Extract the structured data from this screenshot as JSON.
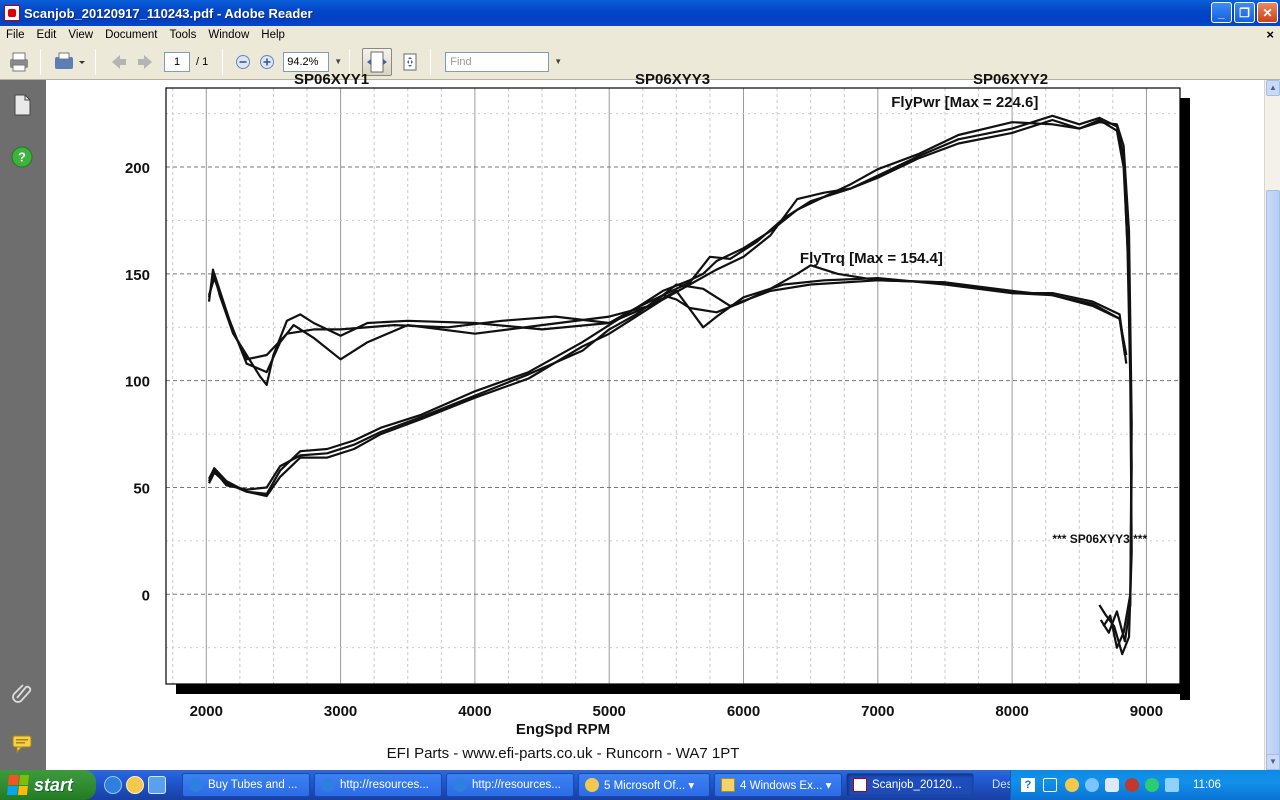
{
  "window": {
    "title": "Scanjob_20120917_110243.pdf - Adobe Reader",
    "minimize_label": "_",
    "maximize_label": "❐",
    "close_label": "✕"
  },
  "menu": {
    "items": [
      "File",
      "Edit",
      "View",
      "Document",
      "Tools",
      "Window",
      "Help"
    ],
    "close_doc": "×"
  },
  "toolbar": {
    "page_current": "1",
    "page_total": "/ 1",
    "zoom": "94.2%",
    "find_placeholder": "Find"
  },
  "colors": {
    "accent": "#245edb",
    "nav_panel": "#6e6e6e"
  },
  "chart_data": {
    "type": "line",
    "xlabel": "EngSpd RPM",
    "ylabel": "",
    "x_ticks": [
      2000,
      3000,
      4000,
      5000,
      6000,
      7000,
      8000,
      9000
    ],
    "y_ticks": [
      0,
      50,
      100,
      150,
      200
    ],
    "xlim": [
      1700,
      9250
    ],
    "ylim": [
      -42,
      237
    ],
    "grid": true,
    "header_labels": [
      "SP06XYY1",
      "SP06XYY3",
      "SP06XYY2"
    ],
    "footer": "EFI Parts - www.efi-parts.co.uk - Runcorn - WA7 1PT",
    "annotations": [
      {
        "text": "FlyPwr [Max = 224.6]",
        "x": 7100,
        "y": 228
      },
      {
        "text": "FlyTrq [Max = 154.4]",
        "x": 6420,
        "y": 155
      },
      {
        "text": "*** SP06XYY3 ***",
        "x": 8300,
        "y": 24
      }
    ],
    "series": [
      {
        "values": [
          [
            2020,
            137
          ],
          [
            2050,
            152
          ],
          [
            2100,
            140
          ],
          [
            2200,
            122
          ],
          [
            2300,
            112
          ],
          [
            2400,
            102
          ],
          [
            2450,
            98
          ],
          [
            2500,
            112
          ],
          [
            2600,
            128
          ],
          [
            2700,
            131
          ],
          [
            2800,
            127
          ],
          [
            3000,
            121
          ],
          [
            3200,
            127
          ],
          [
            3500,
            128
          ],
          [
            4000,
            127
          ],
          [
            4500,
            124
          ],
          [
            5000,
            127
          ],
          [
            5200,
            134
          ],
          [
            5400,
            140
          ],
          [
            5500,
            138
          ],
          [
            5600,
            134
          ],
          [
            5800,
            132
          ],
          [
            6000,
            137
          ],
          [
            6200,
            143
          ],
          [
            6400,
            150
          ],
          [
            6500,
            154
          ],
          [
            6700,
            150
          ],
          [
            7000,
            147
          ],
          [
            7500,
            146
          ],
          [
            8000,
            142
          ],
          [
            8300,
            140
          ],
          [
            8600,
            135
          ],
          [
            8800,
            129
          ],
          [
            8850,
            112
          ]
        ]
      },
      {
        "values": [
          [
            2020,
            140
          ],
          [
            2060,
            148
          ],
          [
            2150,
            132
          ],
          [
            2300,
            108
          ],
          [
            2450,
            104
          ],
          [
            2550,
            118
          ],
          [
            2650,
            126
          ],
          [
            2800,
            120
          ],
          [
            3000,
            110
          ],
          [
            3200,
            118
          ],
          [
            3500,
            126
          ],
          [
            4000,
            122
          ],
          [
            4500,
            126
          ],
          [
            5000,
            130
          ],
          [
            5300,
            135
          ],
          [
            5500,
            142
          ],
          [
            5700,
            125
          ],
          [
            5800,
            130
          ],
          [
            6000,
            139
          ],
          [
            6300,
            145
          ],
          [
            6600,
            147
          ],
          [
            7000,
            148
          ],
          [
            7500,
            145
          ],
          [
            8000,
            141
          ],
          [
            8300,
            141
          ],
          [
            8600,
            137
          ],
          [
            8800,
            131
          ],
          [
            8850,
            108
          ]
        ]
      },
      {
        "values": [
          [
            2020,
            139
          ],
          [
            2060,
            150
          ],
          [
            2200,
            123
          ],
          [
            2300,
            110
          ],
          [
            2450,
            112
          ],
          [
            2600,
            122
          ],
          [
            2800,
            124
          ],
          [
            3000,
            124
          ],
          [
            3400,
            126
          ],
          [
            3800,
            125
          ],
          [
            4200,
            128
          ],
          [
            4600,
            130
          ],
          [
            5000,
            127
          ],
          [
            5300,
            135
          ],
          [
            5500,
            145
          ],
          [
            5700,
            143
          ],
          [
            5900,
            135
          ],
          [
            6200,
            142
          ],
          [
            6500,
            145
          ],
          [
            7000,
            147
          ],
          [
            7500,
            146
          ],
          [
            8000,
            141
          ],
          [
            8300,
            140
          ],
          [
            8600,
            136
          ],
          [
            8800,
            129
          ],
          [
            8840,
            112
          ]
        ]
      },
      {
        "values": [
          [
            2020,
            54
          ],
          [
            2060,
            59
          ],
          [
            2150,
            53
          ],
          [
            2300,
            48
          ],
          [
            2450,
            46
          ],
          [
            2550,
            55
          ],
          [
            2700,
            64
          ],
          [
            2900,
            64
          ],
          [
            3100,
            68
          ],
          [
            3300,
            75
          ],
          [
            3600,
            82
          ],
          [
            4000,
            92
          ],
          [
            4400,
            101
          ],
          [
            4800,
            116
          ],
          [
            5000,
            122
          ],
          [
            5200,
            130
          ],
          [
            5400,
            138
          ],
          [
            5600,
            145
          ],
          [
            5800,
            152
          ],
          [
            6000,
            158
          ],
          [
            6200,
            168
          ],
          [
            6400,
            185
          ],
          [
            6600,
            188
          ],
          [
            6800,
            190
          ],
          [
            7000,
            196
          ],
          [
            7300,
            205
          ],
          [
            7600,
            213
          ],
          [
            8000,
            218
          ],
          [
            8300,
            224
          ],
          [
            8500,
            220
          ],
          [
            8650,
            223
          ],
          [
            8780,
            219
          ],
          [
            8830,
            205
          ],
          [
            8860,
            160
          ],
          [
            8880,
            100
          ],
          [
            8890,
            20
          ],
          [
            8870,
            -20
          ],
          [
            8820,
            -28
          ],
          [
            8760,
            -15
          ],
          [
            8700,
            -10
          ],
          [
            8650,
            -5
          ]
        ]
      },
      {
        "values": [
          [
            2020,
            52
          ],
          [
            2060,
            57
          ],
          [
            2150,
            52
          ],
          [
            2300,
            48
          ],
          [
            2450,
            47
          ],
          [
            2550,
            58
          ],
          [
            2700,
            67
          ],
          [
            2900,
            68
          ],
          [
            3100,
            72
          ],
          [
            3300,
            78
          ],
          [
            3600,
            84
          ],
          [
            4000,
            95
          ],
          [
            4400,
            104
          ],
          [
            4800,
            118
          ],
          [
            5000,
            126
          ],
          [
            5200,
            134
          ],
          [
            5400,
            142
          ],
          [
            5600,
            147
          ],
          [
            5700,
            150
          ],
          [
            5800,
            156
          ],
          [
            6000,
            162
          ],
          [
            6200,
            170
          ],
          [
            6400,
            180
          ],
          [
            6600,
            186
          ],
          [
            6800,
            192
          ],
          [
            7000,
            199
          ],
          [
            7300,
            206
          ],
          [
            7600,
            215
          ],
          [
            8000,
            221
          ],
          [
            8300,
            220
          ],
          [
            8500,
            218
          ],
          [
            8650,
            222
          ],
          [
            8780,
            217
          ],
          [
            8830,
            200
          ],
          [
            8870,
            150
          ],
          [
            8890,
            60
          ],
          [
            8880,
            -5
          ],
          [
            8840,
            -22
          ],
          [
            8780,
            -8
          ],
          [
            8720,
            -18
          ],
          [
            8660,
            -12
          ]
        ]
      },
      {
        "values": [
          [
            2020,
            53
          ],
          [
            2060,
            58
          ],
          [
            2150,
            51
          ],
          [
            2300,
            49
          ],
          [
            2450,
            50
          ],
          [
            2550,
            60
          ],
          [
            2700,
            65
          ],
          [
            2900,
            66
          ],
          [
            3100,
            70
          ],
          [
            3300,
            76
          ],
          [
            3600,
            83
          ],
          [
            4000,
            93
          ],
          [
            4400,
            103
          ],
          [
            4800,
            114
          ],
          [
            5000,
            124
          ],
          [
            5200,
            131
          ],
          [
            5400,
            140
          ],
          [
            5600,
            146
          ],
          [
            5750,
            158
          ],
          [
            5900,
            157
          ],
          [
            6100,
            165
          ],
          [
            6300,
            176
          ],
          [
            6500,
            184
          ],
          [
            6800,
            190
          ],
          [
            7000,
            195
          ],
          [
            7300,
            204
          ],
          [
            7600,
            211
          ],
          [
            8000,
            216
          ],
          [
            8300,
            222
          ],
          [
            8500,
            218
          ],
          [
            8650,
            221
          ],
          [
            8780,
            220
          ],
          [
            8830,
            210
          ],
          [
            8870,
            170
          ],
          [
            8890,
            80
          ],
          [
            8880,
            0
          ],
          [
            8830,
            -18
          ],
          [
            8780,
            -25
          ],
          [
            8730,
            -10
          ],
          [
            8680,
            -15
          ]
        ]
      }
    ]
  }
}
